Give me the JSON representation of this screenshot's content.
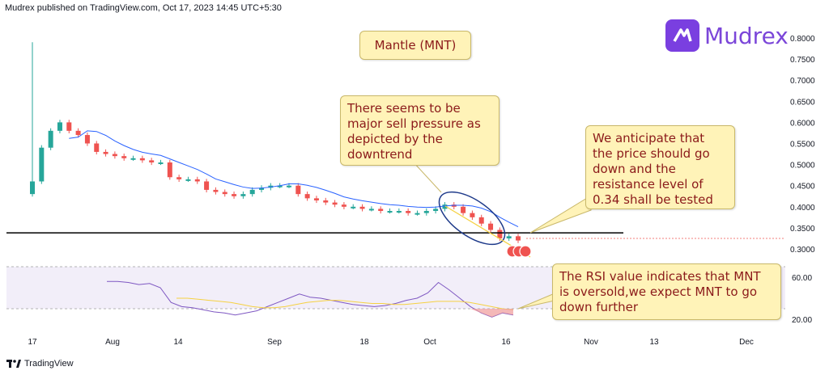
{
  "header": {
    "published_text": "Mudrex published on TradingView.com, Oct 17, 2023 14:45 UTC+5:30"
  },
  "branding": {
    "logo_text": "Mudrex",
    "logo_icon": "mudrex-logo-icon",
    "footer_text": "TradingView",
    "footer_icon": "tradingview-icon",
    "brand_color": "#7a3fe0"
  },
  "title_box": {
    "text": "Mantle (MNT)"
  },
  "annotations": [
    {
      "id": "sell-pressure",
      "text": "There seems to be major sell pressure as depicted by the downtrend"
    },
    {
      "id": "anticipation",
      "text": "We anticipate that the price should go down and the resistance level of 0.34 shall be tested"
    },
    {
      "id": "rsi-note",
      "text": "The RSI value indicates that MNT is oversold,we expect MNT to go down further"
    }
  ],
  "chart_data": {
    "type": "candlestick",
    "x_ticks": [
      "17",
      "Aug",
      "14",
      "Sep",
      "18",
      "Oct",
      "16",
      "Nov",
      "13",
      "Dec"
    ],
    "price_axis": {
      "ticks": [
        "0.8000",
        "0.7500",
        "0.7000",
        "0.6500",
        "0.6000",
        "0.5500",
        "0.5000",
        "0.4500",
        "0.4000",
        "0.3500",
        "0.3000"
      ],
      "ylim": [
        0.27,
        0.82
      ]
    },
    "rsi_axis": {
      "ticks": [
        "60.00",
        "20.00"
      ],
      "upper_band": 70,
      "lower_band": 30
    },
    "resistance_level": 0.34,
    "price_series": [
      0.46,
      0.54,
      0.58,
      0.6,
      0.58,
      0.57,
      0.55,
      0.53,
      0.525,
      0.52,
      0.515,
      0.515,
      0.51,
      0.505,
      0.505,
      0.47,
      0.465,
      0.465,
      0.46,
      0.44,
      0.435,
      0.43,
      0.425,
      0.43,
      0.44,
      0.445,
      0.45,
      0.45,
      0.45,
      0.43,
      0.42,
      0.415,
      0.41,
      0.405,
      0.4,
      0.4,
      0.395,
      0.395,
      0.39,
      0.39,
      0.39,
      0.385,
      0.385,
      0.39,
      0.395,
      0.405,
      0.4,
      0.385,
      0.375,
      0.36,
      0.345,
      0.325,
      0.33,
      0.32
    ],
    "rsi_series": [
      56,
      56,
      55,
      53,
      54,
      50,
      36,
      32,
      31,
      29,
      27,
      26,
      24,
      26,
      28,
      32,
      36,
      40,
      44,
      41,
      40,
      38,
      36,
      34,
      33,
      32,
      33,
      35,
      38,
      40,
      45,
      55,
      48,
      40,
      32,
      26,
      22,
      26,
      24
    ],
    "rsi_ma_series": [
      40,
      40,
      39,
      38,
      37,
      36,
      34,
      32,
      31,
      31,
      32,
      34,
      36,
      37,
      38,
      38,
      37,
      36,
      35,
      35,
      34,
      34,
      35,
      36,
      37,
      37,
      37,
      36,
      34,
      32,
      30,
      29
    ],
    "colors": {
      "up": "#26a69a",
      "down": "#ef5350",
      "ma": "#2962ff",
      "rsi": "#7e57c2",
      "rsi_ma": "#f5d142",
      "resistance": "#000000"
    }
  }
}
